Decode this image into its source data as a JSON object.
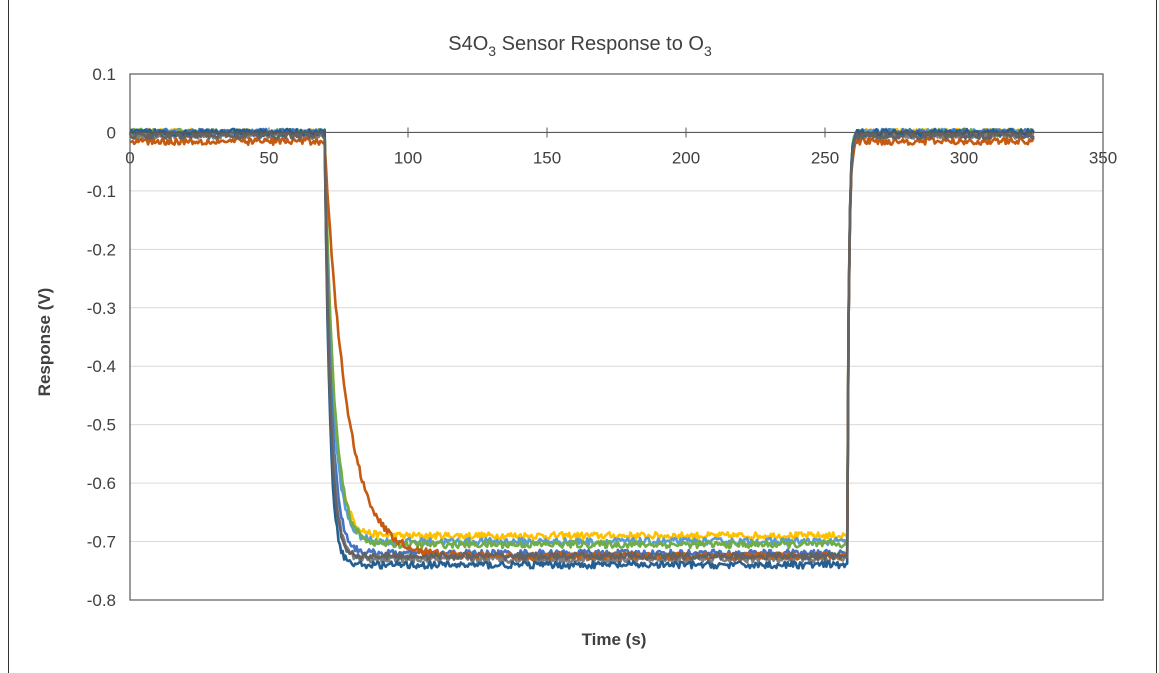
{
  "chart_data": {
    "type": "line",
    "title": "S4O",
    "title_sub1": "3",
    "title_mid": " Sensor Response to  O",
    "title_sub2": "3",
    "xlabel": "Time (s)",
    "ylabel": "Response (V)",
    "xlim": [
      0,
      350
    ],
    "ylim": [
      -0.8,
      0.1
    ],
    "x_ticks": [
      0,
      50,
      100,
      150,
      200,
      250,
      300,
      350
    ],
    "x_tick_labels": [
      "0",
      "50",
      "100",
      "150",
      "200",
      "250",
      "300",
      "350"
    ],
    "y_ticks": [
      0.1,
      0,
      -0.1,
      -0.2,
      -0.3,
      -0.4,
      -0.5,
      -0.6,
      -0.7,
      -0.8
    ],
    "y_tick_labels": [
      "0.1",
      "0",
      "-0.1",
      "-0.2",
      "-0.3",
      "-0.4",
      "-0.5",
      "-0.6",
      "-0.7",
      "-0.8"
    ],
    "grid": true,
    "legend": "none",
    "gas_on_time": 70,
    "gas_off_time": 258,
    "end_time": 325,
    "series": [
      {
        "color": "#ffc000",
        "baseline": 0.0,
        "plateau": -0.69,
        "tau": 3.2
      },
      {
        "color": "#5b9bd5",
        "baseline": 0.0,
        "plateau": -0.7,
        "tau": 3.0
      },
      {
        "color": "#70ad47",
        "baseline": 0.0,
        "plateau": -0.705,
        "tau": 3.4
      },
      {
        "color": "#4472c4",
        "baseline": 0.0,
        "plateau": -0.72,
        "tau": 2.5
      },
      {
        "color": "#7f7f7f",
        "baseline": -0.005,
        "plateau": -0.73,
        "tau": 2.2
      },
      {
        "color": "#255e91",
        "baseline": 0.0,
        "plateau": -0.74,
        "tau": 1.8
      },
      {
        "color": "#c55a11",
        "baseline": -0.015,
        "plateau": -0.725,
        "tau": 8.0
      },
      {
        "color": "#636363",
        "baseline": -0.005,
        "plateau": -0.725,
        "tau": 2.0
      }
    ]
  }
}
